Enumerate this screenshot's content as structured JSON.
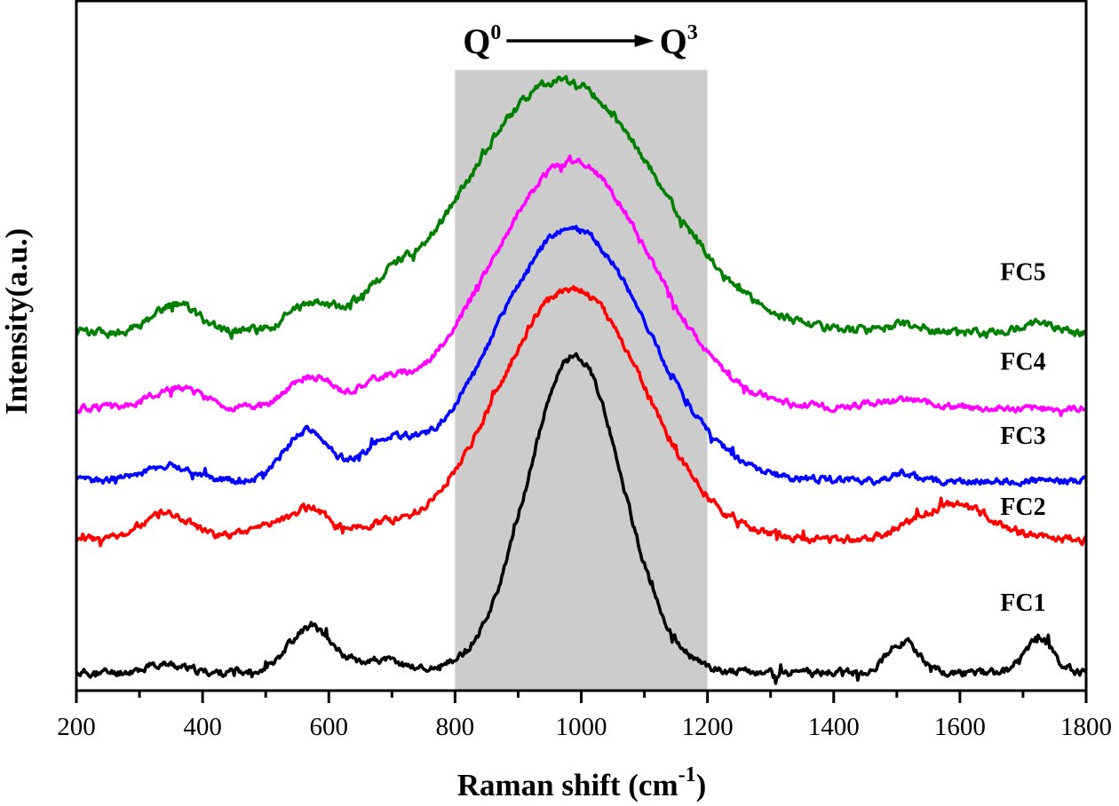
{
  "chart_data": {
    "type": "line",
    "title": "",
    "xlabel": "Raman shift (cm",
    "xlabel_sup": "-1",
    "xlabel_tail": ")",
    "ylabel": "Intensity(a.u.)",
    "xlim": [
      200,
      1800
    ],
    "ylim": [
      0,
      100
    ],
    "x_ticks": [
      200,
      400,
      600,
      800,
      1000,
      1200,
      1400,
      1600,
      1800
    ],
    "x_tick_labels": [
      "200",
      "400",
      "600",
      "800",
      "1000",
      "1200",
      "1400",
      "1600",
      "1800"
    ],
    "x_minor_ticks": [
      300,
      500,
      700,
      900,
      1100,
      1300,
      1500,
      1700
    ],
    "y_ticks": [],
    "grid": false,
    "legend": "inline-right",
    "shaded_region": {
      "x_start": 800,
      "x_end": 1200,
      "color": "#cccccc",
      "y_top": 90
    },
    "annotation": {
      "left_text": "Q",
      "left_sup": "0",
      "right_text": "Q",
      "right_sup": "3",
      "arrow": "right",
      "x_start": 800,
      "x_end": 1200
    },
    "x_step": 2,
    "series": [
      {
        "name": "FC1",
        "color": "#000000",
        "baseline": 2.6,
        "noise": 0.9,
        "seed": 11,
        "peaks": [
          [
            340,
            1.2,
            30
          ],
          [
            570,
            6.5,
            35
          ],
          [
            680,
            1.8,
            40
          ],
          [
            990,
            46,
            75
          ],
          [
            1510,
            4.5,
            25
          ],
          [
            1725,
            5,
            22
          ]
        ],
        "label_position": {
          "x": 1700,
          "y": 11.6
        }
      },
      {
        "name": "FC2",
        "color": "#ff0000",
        "baseline": 21.9,
        "noise": 0.9,
        "seed": 23,
        "peaks": [
          [
            345,
            3.8,
            40
          ],
          [
            520,
            2.5,
            40
          ],
          [
            575,
            3.5,
            25
          ],
          [
            670,
            1.5,
            40
          ],
          [
            985,
            36.5,
            115
          ],
          [
            1590,
            5,
            60
          ]
        ],
        "label_position": {
          "x": 1700,
          "y": 25.5
        }
      },
      {
        "name": "FC3",
        "color": "#0000ff",
        "baseline": 30.4,
        "noise": 0.8,
        "seed": 37,
        "peaks": [
          [
            345,
            2.2,
            40
          ],
          [
            565,
            7.2,
            35
          ],
          [
            690,
            4.5,
            40
          ],
          [
            985,
            36.5,
            120
          ],
          [
            1510,
            1.2,
            15
          ]
        ],
        "label_position": {
          "x": 1700,
          "y": 35.8
        }
      },
      {
        "name": "FC4",
        "color": "#ff00ff",
        "baseline": 40.9,
        "noise": 0.8,
        "seed": 51,
        "peaks": [
          [
            360,
            3.0,
            40
          ],
          [
            570,
            4.5,
            35
          ],
          [
            680,
            2.8,
            35
          ],
          [
            985,
            35.7,
            125
          ],
          [
            1510,
            1.2,
            50
          ]
        ],
        "label_position": {
          "x": 1700,
          "y": 46.5
        }
      },
      {
        "name": "FC5",
        "color": "#008000",
        "baseline": 51.9,
        "noise": 1.0,
        "seed": 73,
        "peaks": [
          [
            360,
            4.0,
            35
          ],
          [
            570,
            3.2,
            35
          ],
          [
            690,
            2.5,
            35
          ],
          [
            970,
            36.5,
            150
          ],
          [
            1510,
            1.2,
            25
          ],
          [
            1725,
            1.5,
            25
          ]
        ],
        "label_position": {
          "x": 1700,
          "y": 59.5
        }
      }
    ]
  }
}
